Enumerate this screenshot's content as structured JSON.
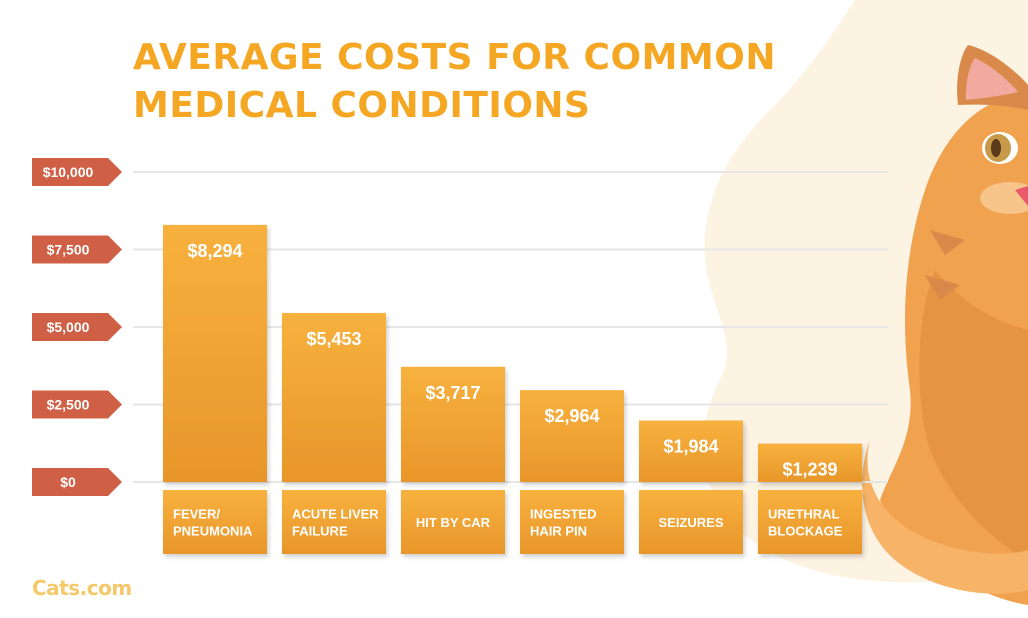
{
  "header": {
    "title": "AVERAGE COSTS FOR COMMON\nMEDICAL CONDITIONS"
  },
  "brand": {
    "name": "Cats.com"
  },
  "colors": {
    "title": "#f5a623",
    "bar_top": "#f7b13e",
    "bar_bottom": "#e8962a",
    "tick_badge": "#cf5f45",
    "gridline": "#e6e6e6",
    "background_blob": "#fdf3e3",
    "cat_fur": "#f0a24f"
  },
  "decorations": {
    "illustration": "orange-cat-icon"
  },
  "chart_data": {
    "type": "bar",
    "title": "AVERAGE COSTS FOR COMMON MEDICAL CONDITIONS",
    "categories": [
      "FEVER/\nPNEUMONIA",
      "ACUTE LIVER\nFAILURE",
      "HIT BY CAR",
      "INGESTED\nHAIR PIN",
      "SEIZURES",
      "URETHRAL\nBLOCKAGE"
    ],
    "values": [
      8294,
      5453,
      3717,
      2964,
      1984,
      1239
    ],
    "value_labels": [
      "$8,294",
      "$5,453",
      "$3,717",
      "$2,964",
      "$1,984",
      "$1,239"
    ],
    "yticks": [
      0,
      2500,
      5000,
      7500,
      10000
    ],
    "ytick_labels": [
      "$0",
      "$2,500",
      "$5,000",
      "$7,500",
      "$10,000"
    ],
    "ylim": [
      0,
      10000
    ],
    "xlabel": "",
    "ylabel": "",
    "grid": true,
    "legend": "none"
  }
}
